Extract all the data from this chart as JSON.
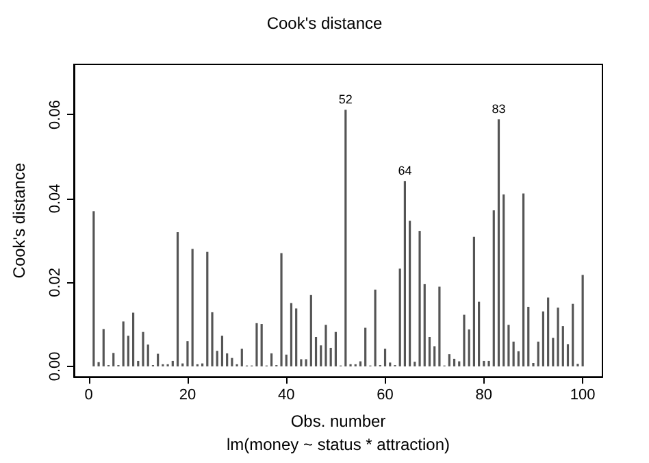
{
  "chart_data": {
    "type": "bar",
    "title": "Cook's distance",
    "subtitle": "lm(money ~ status * attraction)",
    "xlabel": "Obs. number",
    "ylabel": "Cook's distance",
    "x": [
      1,
      2,
      3,
      4,
      5,
      6,
      7,
      8,
      9,
      10,
      11,
      12,
      13,
      14,
      15,
      16,
      17,
      18,
      19,
      20,
      21,
      22,
      23,
      24,
      25,
      26,
      27,
      28,
      29,
      30,
      31,
      32,
      33,
      34,
      35,
      36,
      37,
      38,
      39,
      40,
      41,
      42,
      43,
      44,
      45,
      46,
      47,
      48,
      49,
      50,
      51,
      52,
      53,
      54,
      55,
      56,
      57,
      58,
      59,
      60,
      61,
      62,
      63,
      64,
      65,
      66,
      67,
      68,
      69,
      70,
      71,
      72,
      73,
      74,
      75,
      76,
      77,
      78,
      79,
      80,
      81,
      82,
      83,
      84,
      85,
      86,
      87,
      88,
      89,
      90,
      91,
      92,
      93,
      94,
      95,
      96,
      97,
      98,
      99,
      100
    ],
    "series": [
      {
        "color": "#555555",
        "values": [
          0.037,
          0.001,
          0.0089,
          0.0003,
          0.0032,
          0.0003,
          0.0107,
          0.0073,
          0.0128,
          0.0013,
          0.0082,
          0.0052,
          0.0003,
          0.003,
          0.0005,
          0.0005,
          0.0013,
          0.032,
          0.0007,
          0.006,
          0.028,
          0.0005,
          0.0007,
          0.0273,
          0.0129,
          0.0037,
          0.0073,
          0.0031,
          0.002,
          0.0005,
          0.0042,
          0.0002,
          0.0002,
          0.0103,
          0.0101,
          0.0002,
          0.0031,
          0.0003,
          0.027,
          0.0028,
          0.0151,
          0.0138,
          0.0017,
          0.0017,
          0.017,
          0.007,
          0.005,
          0.0099,
          0.0044,
          0.0082,
          0.0002,
          0.0612,
          0.0005,
          0.0005,
          0.0012,
          0.0092,
          0.0002,
          0.0183,
          0.0003,
          0.0042,
          0.0009,
          0.0003,
          0.0233,
          0.0442,
          0.0347,
          0.0011,
          0.0323,
          0.0196,
          0.007,
          0.0048,
          0.019,
          0.0002,
          0.0029,
          0.0018,
          0.0012,
          0.0123,
          0.0088,
          0.0309,
          0.0154,
          0.0013,
          0.0013,
          0.0372,
          0.0589,
          0.041,
          0.0099,
          0.0059,
          0.0036,
          0.0412,
          0.0142,
          0.0008,
          0.0059,
          0.0131,
          0.0164,
          0.0068,
          0.014,
          0.0096,
          0.0053,
          0.0149,
          0.0006,
          0.0218
        ]
      }
    ],
    "annotations": [
      {
        "text": "52",
        "x": 52,
        "y": 0.0612
      },
      {
        "text": "64",
        "x": 64,
        "y": 0.0442
      },
      {
        "text": "83",
        "x": 83,
        "y": 0.0589
      }
    ],
    "xlim": [
      -3,
      104
    ],
    "xticks": [
      0,
      20,
      40,
      60,
      80,
      100
    ],
    "ylim": [
      -0.0025,
      0.072
    ],
    "yticks": [
      {
        "value": 0,
        "label": "0.00"
      },
      {
        "value": 0.02,
        "label": "0.02"
      },
      {
        "value": 0.04,
        "label": "0.04"
      },
      {
        "value": 0.06,
        "label": "0.06"
      }
    ],
    "grid": false
  }
}
